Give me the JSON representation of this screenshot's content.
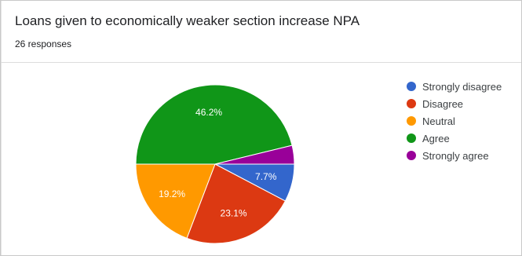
{
  "title": "Loans given to economically weaker section increase NPA",
  "subtitle": "26 responses",
  "chart_data": {
    "type": "pie",
    "title": "Loans given to economically weaker section increase NPA",
    "subtitle": "26 responses",
    "slices": [
      {
        "label": "Strongly disagree",
        "value": 7.7,
        "display": "7.7%",
        "color": "#3366cc"
      },
      {
        "label": "Disagree",
        "value": 23.1,
        "display": "23.1%",
        "color": "#dc3912"
      },
      {
        "label": "Neutral",
        "value": 19.2,
        "display": "19.2%",
        "color": "#ff9900"
      },
      {
        "label": "Agree",
        "value": 46.2,
        "display": "46.2%",
        "color": "#109618"
      },
      {
        "label": "Strongly agree",
        "value": 3.8,
        "display": "",
        "color": "#990099"
      }
    ],
    "legend_position": "right"
  }
}
